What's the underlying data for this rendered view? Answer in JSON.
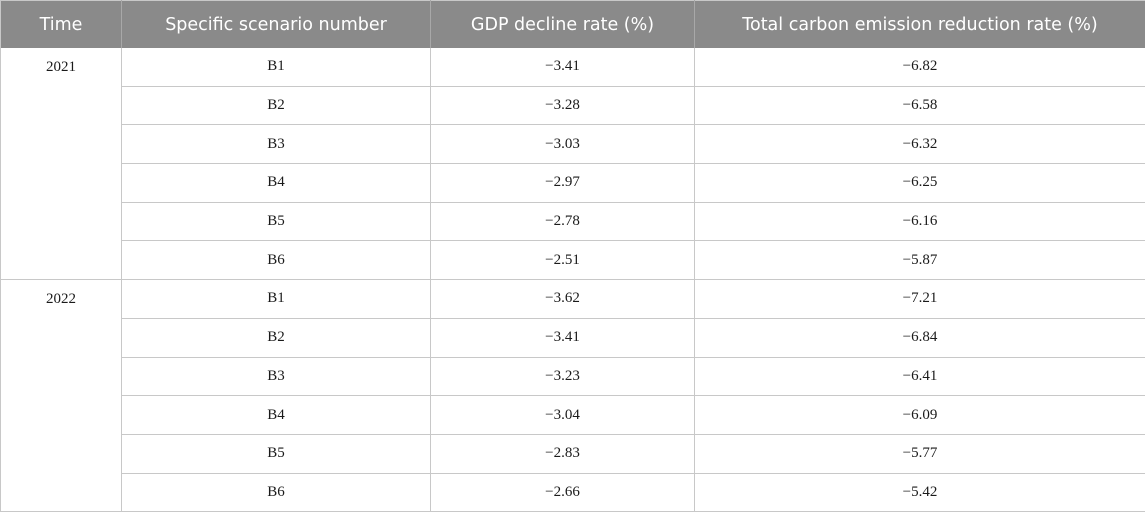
{
  "table": {
    "headers": [
      "Time",
      "Specific scenario number",
      "GDP decline rate (%)",
      "Total carbon emission reduction rate (%)"
    ],
    "groups": [
      {
        "time": "2021",
        "rows": [
          {
            "scenario": "B1",
            "gdp": "−3.41",
            "carbon": "−6.82"
          },
          {
            "scenario": "B2",
            "gdp": "−3.28",
            "carbon": "−6.58"
          },
          {
            "scenario": "B3",
            "gdp": "−3.03",
            "carbon": "−6.32"
          },
          {
            "scenario": "B4",
            "gdp": "−2.97",
            "carbon": "−6.25"
          },
          {
            "scenario": "B5",
            "gdp": "−2.78",
            "carbon": "−6.16"
          },
          {
            "scenario": "B6",
            "gdp": "−2.51",
            "carbon": "−5.87"
          }
        ]
      },
      {
        "time": "2022",
        "rows": [
          {
            "scenario": "B1",
            "gdp": "−3.62",
            "carbon": "−7.21"
          },
          {
            "scenario": "B2",
            "gdp": "−3.41",
            "carbon": "−6.84"
          },
          {
            "scenario": "B3",
            "gdp": "−3.23",
            "carbon": "−6.41"
          },
          {
            "scenario": "B4",
            "gdp": "−3.04",
            "carbon": "−6.09"
          },
          {
            "scenario": "B5",
            "gdp": "−2.83",
            "carbon": "−5.77"
          },
          {
            "scenario": "B6",
            "gdp": "−2.66",
            "carbon": "−5.42"
          }
        ]
      }
    ]
  }
}
